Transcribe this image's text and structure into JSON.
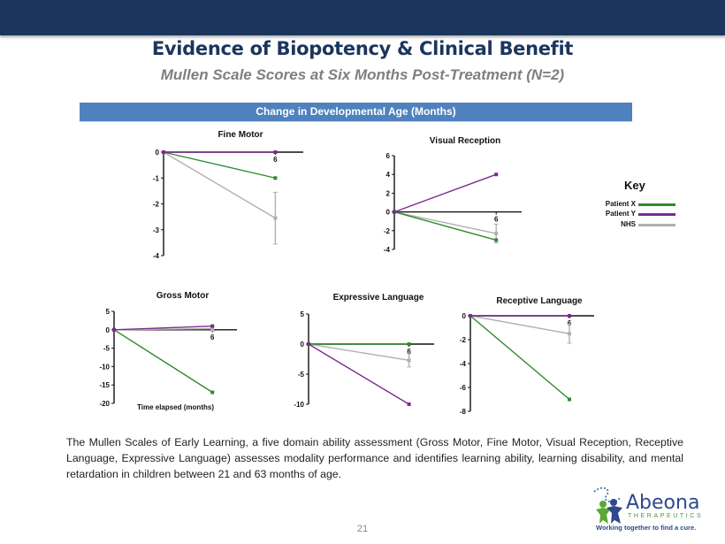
{
  "header": {
    "title": "Evidence of Biopotency & Clinical Benefit",
    "subtitle": "Mullen Scale Scores at Six Months Post-Treatment (N=2)",
    "band_label": "Change in Developmental Age (Months)"
  },
  "colors": {
    "top_bar": "#1b365d",
    "band": "#4f81bd",
    "patient_x": "#2e8b2e",
    "patient_y": "#7b2d8e",
    "nhs": "#b0b0b0"
  },
  "key": {
    "title": "Key",
    "items": [
      {
        "label": "Patient  X",
        "series": "patient_x"
      },
      {
        "label": "Patient  Y",
        "series": "patient_y"
      },
      {
        "label": "NHS",
        "series": "nhs"
      }
    ]
  },
  "chart_data": [
    {
      "type": "line",
      "title": "Fine Motor",
      "xlabel": "",
      "ylabel": "",
      "x": [
        0,
        6
      ],
      "x_tick_labels": [
        "6"
      ],
      "ylim": [
        -4,
        0
      ],
      "yticks": [
        0,
        -1,
        -2,
        -3,
        -4
      ],
      "series": [
        {
          "name": "Patient X",
          "values": [
            0,
            -1
          ]
        },
        {
          "name": "Patient Y",
          "values": [
            0,
            0
          ]
        },
        {
          "name": "NHS",
          "values": [
            0,
            -2.55
          ],
          "error": [
            0,
            1.0
          ]
        }
      ]
    },
    {
      "type": "line",
      "title": "Visual Reception",
      "xlabel": "",
      "ylabel": "",
      "x": [
        0,
        6
      ],
      "x_tick_labels": [
        "6"
      ],
      "ylim": [
        -4,
        6
      ],
      "yticks": [
        6,
        4,
        2,
        0,
        -2,
        -4
      ],
      "series": [
        {
          "name": "Patient X",
          "values": [
            0,
            -3
          ]
        },
        {
          "name": "Patient Y",
          "values": [
            0,
            4
          ]
        },
        {
          "name": "NHS",
          "values": [
            0,
            -2.3
          ],
          "error": [
            0,
            1.0
          ]
        }
      ]
    },
    {
      "type": "line",
      "title": "Gross Motor",
      "xlabel": "Time elapsed (months)",
      "ylabel": "",
      "x": [
        0,
        6
      ],
      "x_tick_labels": [
        "6"
      ],
      "ylim": [
        -20,
        5
      ],
      "yticks": [
        5,
        0,
        -5,
        -10,
        -15,
        -20
      ],
      "series": [
        {
          "name": "Patient X",
          "values": [
            0,
            -17
          ]
        },
        {
          "name": "Patient Y",
          "values": [
            0,
            1
          ]
        },
        {
          "name": "NHS",
          "values": [
            0,
            0.3
          ],
          "error": [
            0,
            0.6
          ]
        }
      ]
    },
    {
      "type": "line",
      "title": "Expressive Language",
      "xlabel": "",
      "ylabel": "",
      "x": [
        0,
        6
      ],
      "x_tick_labels": [
        "6"
      ],
      "ylim": [
        -10,
        5
      ],
      "yticks": [
        5,
        0,
        -5,
        -10
      ],
      "series": [
        {
          "name": "Patient X",
          "values": [
            0,
            0
          ]
        },
        {
          "name": "Patient Y",
          "values": [
            0,
            -10
          ]
        },
        {
          "name": "NHS",
          "values": [
            0,
            -2.7
          ],
          "error": [
            0,
            1.1
          ]
        }
      ]
    },
    {
      "type": "line",
      "title": "Receptive Language",
      "xlabel": "",
      "ylabel": "",
      "x": [
        0,
        6
      ],
      "x_tick_labels": [
        "6"
      ],
      "ylim": [
        -8,
        0
      ],
      "yticks": [
        0,
        -2,
        -4,
        -6,
        -8
      ],
      "series": [
        {
          "name": "Patient X",
          "values": [
            0,
            -7
          ]
        },
        {
          "name": "Patient Y",
          "values": [
            0,
            0
          ]
        },
        {
          "name": "NHS",
          "values": [
            0,
            -1.5
          ],
          "error": [
            0,
            0.8
          ]
        }
      ]
    }
  ],
  "body": {
    "paragraph": "The Mullen Scales of Early Learning, a five domain ability assessment (Gross Motor, Fine Motor, Visual Reception, Receptive Language, Expressive Language) assesses modality performance and identifies learning ability, learning disability, and mental retardation in children between 21 and 63 months of age."
  },
  "footer": {
    "page_number": "21",
    "logo_name": "Abeona",
    "logo_sub": "THERAPEUTICS",
    "logo_tagline": "Working together to find a cure."
  }
}
